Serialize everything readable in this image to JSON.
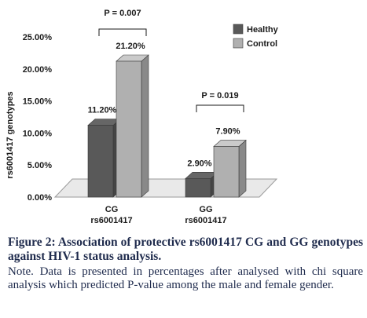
{
  "chart_data": {
    "type": "bar",
    "three_d": true,
    "categories": [
      {
        "line1": "CG",
        "line2": "rs6001417"
      },
      {
        "line1": "GG",
        "line2": "rs6001417"
      }
    ],
    "series": [
      {
        "name": "Healthy",
        "color": "#595959",
        "values": [
          11.2,
          2.9
        ],
        "labels": [
          "11.20%",
          "2.90%"
        ]
      },
      {
        "name": "Control",
        "color": "#b0b0b0",
        "values": [
          21.2,
          7.9
        ],
        "labels": [
          "21.20%",
          "7.90%"
        ]
      }
    ],
    "ylabel": "rs6001417 genotypes",
    "yticks": [
      "0.00%",
      "5.00%",
      "10.00%",
      "15.00%",
      "20.00%",
      "25.00%"
    ],
    "ylim": [
      0,
      25
    ],
    "grid": false,
    "legend": "top-right",
    "annotations": [
      {
        "category_index": 0,
        "text": "P = 0.007"
      },
      {
        "category_index": 1,
        "text": "P = 0.019"
      }
    ]
  },
  "caption": {
    "title": "Figure 2: Association of protective rs6001417 CG and GG genotypes against HIV-1 status analysis.",
    "note": "Note. Data is presented in percentages after analysed with chi square analysis which predicted P-value among the male and female gender."
  }
}
